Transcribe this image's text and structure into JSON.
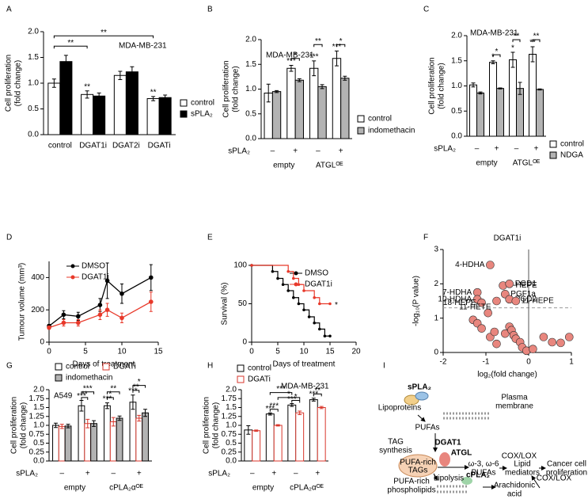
{
  "chart_data": [
    {
      "panel": "A",
      "type": "bar",
      "ylabel": [
        "Cell proliferation",
        "(fold change)"
      ],
      "note": "MDA-MB-231",
      "categories": [
        "control",
        "DGAT1i",
        "DGAT2i",
        "DGATi"
      ],
      "series": [
        {
          "name": "control",
          "color": "#ffffff",
          "edgecolor": "#000000",
          "values": [
            1.0,
            0.78,
            1.15,
            0.7
          ],
          "errors": [
            0.08,
            0.07,
            0.08,
            0.04
          ],
          "stars": [
            null,
            "**",
            null,
            "**"
          ]
        },
        {
          "name": "sPLA₂",
          "color": "#000000",
          "edgecolor": "#000000",
          "values": [
            1.42,
            0.75,
            1.22,
            0.72
          ],
          "errors": [
            0.12,
            0.06,
            0.1,
            0.05
          ]
        }
      ],
      "brackets": [
        "**",
        "**"
      ],
      "ylim": [
        0,
        2
      ],
      "yticks": [
        {
          "value": 0,
          "label": "0.0"
        },
        0.5,
        {
          "value": 1,
          "label": "1.0"
        },
        1.5,
        {
          "value": 2,
          "label": "2.0"
        }
      ]
    },
    {
      "panel": "B",
      "type": "bar",
      "ylabel": [
        "Cell proliferation",
        "(fold change)"
      ],
      "note": "MDA-MB-231",
      "categories": [
        "–",
        "+",
        "–",
        "+"
      ],
      "groups": [
        "empty",
        "ATGLᴼᴱ"
      ],
      "row_label": "sPLA₂",
      "series": [
        {
          "name": "control",
          "color": "#ffffff",
          "edgecolor": "#000000",
          "values": [
            0.92,
            1.42,
            1.42,
            1.62
          ],
          "errors": [
            0.18,
            0.06,
            0.15,
            0.15
          ],
          "stars": [
            null,
            "***",
            "***",
            "***"
          ]
        },
        {
          "name": "indomethacin",
          "color": "#b3b3b3",
          "edgecolor": "#000000",
          "values": [
            0.95,
            1.18,
            1.05,
            1.22
          ],
          "errors": [
            0.02,
            0.03,
            0.04,
            0.04
          ]
        }
      ],
      "brackets": [
        "*",
        "**",
        "*"
      ],
      "ylim": [
        0,
        2
      ],
      "yticks": [
        {
          "value": 0,
          "label": "0.0"
        },
        0.5,
        {
          "value": 1,
          "label": "1.0"
        },
        1.5,
        {
          "value": 2,
          "label": "2.0"
        }
      ]
    },
    {
      "panel": "C",
      "type": "bar",
      "ylabel": [
        "Cell proliferation",
        "(fold change)"
      ],
      "note": "MDA-MB-231",
      "categories": [
        "–",
        "+",
        "–",
        "+"
      ],
      "groups": [
        "empty",
        "ATGLᴼᴱ"
      ],
      "row_label": "sPLA₂",
      "series": [
        {
          "name": "control",
          "color": "#ffffff",
          "edgecolor": "#000000",
          "values": [
            1.02,
            1.47,
            1.52,
            1.63
          ],
          "errors": [
            0.04,
            0.03,
            0.15,
            0.15
          ],
          "stars": [
            null,
            "*",
            "*",
            "**"
          ]
        },
        {
          "name": "NDGA",
          "color": "#b3b3b3",
          "edgecolor": "#000000",
          "values": [
            0.86,
            0.95,
            0.95,
            0.93
          ],
          "errors": [
            0.02,
            0.01,
            0.12,
            0.01
          ]
        }
      ],
      "brackets": [
        "*",
        "**",
        "**"
      ],
      "ylim": [
        0,
        2
      ],
      "yticks": [
        {
          "value": 0,
          "label": "0.0"
        },
        0.5,
        {
          "value": 1,
          "label": "1.0"
        },
        1.5,
        {
          "value": 2,
          "label": "2.0"
        }
      ]
    },
    {
      "panel": "D",
      "type": "line",
      "ylabel": "Tumour volume (mm³)",
      "xlabel": "Days of treatment",
      "x": [
        0,
        2,
        4,
        7,
        8,
        10,
        14
      ],
      "series": [
        {
          "name": "DMSO",
          "color": "#000000",
          "values": [
            100,
            170,
            160,
            230,
            380,
            300,
            400
          ],
          "errors": [
            10,
            25,
            25,
            40,
            110,
            60,
            80
          ]
        },
        {
          "name": "DGAT1i",
          "color": "#e8392a",
          "values": [
            90,
            120,
            120,
            170,
            200,
            150,
            250
          ],
          "errors": [
            10,
            20,
            20,
            30,
            40,
            30,
            60
          ]
        }
      ],
      "xlim": [
        0,
        15
      ],
      "xticks": [
        0,
        5,
        10,
        15
      ],
      "ylim": [
        0,
        500
      ],
      "yticks": [
        0,
        200,
        400
      ]
    },
    {
      "panel": "E",
      "type": "step",
      "ylabel": "Survival (%)",
      "xlabel": "Days of treatment",
      "note": "*",
      "series": [
        {
          "name": "DMSO",
          "color": "#000000",
          "x": [
            0,
            4,
            5,
            6,
            7,
            8,
            9,
            10,
            11,
            12,
            13,
            14,
            15
          ],
          "values": [
            100,
            92,
            83,
            75,
            67,
            58,
            50,
            42,
            33,
            25,
            17,
            8,
            8
          ]
        },
        {
          "name": "DGAT1i",
          "color": "#e8392a",
          "x": [
            0,
            7,
            8,
            9,
            10,
            12,
            13,
            15
          ],
          "values": [
            100,
            92,
            83,
            75,
            67,
            58,
            50,
            50
          ]
        }
      ],
      "xlim": [
        0,
        20
      ],
      "xticks": [
        0,
        5,
        10,
        15,
        20
      ],
      "ylim": [
        0,
        100
      ],
      "yticks": [
        0,
        50,
        100
      ]
    },
    {
      "panel": "F",
      "type": "scatter",
      "title": "DGAT1i",
      "ylabel": "-log₁₀(P value)",
      "xlabel": "log₂(fold change)",
      "color": "#e8867e",
      "x": [
        -0.9,
        -0.6,
        -0.45,
        -1.2,
        -0.55,
        -1.2,
        -0.45,
        -1.1,
        -0.3,
        -0.75,
        -1.3,
        -1.2,
        -1.1,
        -0.95,
        -0.9,
        -0.8,
        -0.75,
        -0.55,
        -0.45,
        -0.4,
        -0.35,
        -0.3,
        -0.2,
        -0.15,
        -0.05,
        0.1,
        0.35,
        0.55,
        0.75,
        0.95
      ],
      "values": [
        2.55,
        1.95,
        2.0,
        1.75,
        1.7,
        1.55,
        1.55,
        1.45,
        1.5,
        1.5,
        0.95,
        0.85,
        0.7,
        1.15,
        0.45,
        0.6,
        0.25,
        0.55,
        0.75,
        0.65,
        0.5,
        0.4,
        0.3,
        0.15,
        0.05,
        0.1,
        0.45,
        0.3,
        0.28,
        0.45
      ],
      "labels": [
        "4-HDHA",
        "5-HEPE",
        "PGD1",
        "7-HDHA",
        "PGF1a",
        "10-HDHA",
        "PGD2",
        "18-HEPE",
        "11-HEPE",
        "11-HETE",
        null,
        null,
        null,
        null,
        null,
        null,
        null,
        null,
        null,
        null,
        null,
        null,
        null,
        null,
        null,
        null,
        null,
        null,
        null,
        null
      ],
      "hline": 1.3,
      "vline": 0,
      "xlim": [
        -2,
        1
      ],
      "xticks": [
        -2,
        -1,
        0,
        1
      ],
      "ylim": [
        0,
        3
      ],
      "yticks": [
        0,
        1,
        2,
        3
      ]
    },
    {
      "panel": "G",
      "type": "bar",
      "ylabel": [
        "Cell proliferation",
        "(fold change)"
      ],
      "note": "A549",
      "categories": [
        "–",
        "+",
        "–",
        "+"
      ],
      "groups": [
        "empty",
        "cPLA₂αᴼᴱ"
      ],
      "row_label": "sPLA₂",
      "series": [
        {
          "name": "control",
          "color": "#ffffff",
          "edgecolor": "#000000",
          "values": [
            1.0,
            1.55,
            1.55,
            1.65
          ],
          "errors": [
            0.06,
            0.15,
            0.08,
            0.2
          ],
          "stars": [
            null,
            "***",
            "***",
            "***"
          ]
        },
        {
          "name": "DGATi",
          "color": "#ffffff",
          "edgecolor": "#d9362b",
          "values": [
            0.97,
            1.05,
            1.1,
            1.2
          ],
          "errors": [
            0.06,
            0.12,
            0.12,
            0.08
          ]
        },
        {
          "name": "indomethacin",
          "color": "#b3b3b3",
          "edgecolor": "#000000",
          "values": [
            0.98,
            1.05,
            1.2,
            1.35
          ],
          "errors": [
            0.05,
            0.08,
            0.06,
            0.1
          ]
        }
      ],
      "brackets": [
        "**",
        "***",
        "*",
        "**",
        "**",
        "*"
      ],
      "ylim": [
        0,
        2
      ],
      "yticks": [
        {
          "value": 0,
          "label": "0.0"
        },
        0.25,
        0.5,
        0.75,
        {
          "value": 1,
          "label": "1.0"
        },
        1.25,
        1.5,
        1.75,
        {
          "value": 2,
          "label": "2.0"
        }
      ]
    },
    {
      "panel": "H",
      "type": "bar",
      "ylabel": [
        "Cell proliferation",
        "(fold change)"
      ],
      "note": "MDA-MB-231",
      "categories": [
        "–",
        "+",
        "–",
        "+"
      ],
      "groups": [
        "empty",
        "cPLA₂αᴼᴱ"
      ],
      "row_label": "sPLA₂",
      "series": [
        {
          "name": "control",
          "color": "#ffffff",
          "edgecolor": "#000000",
          "values": [
            0.87,
            1.32,
            1.57,
            1.72
          ],
          "errors": [
            0.12,
            0.03,
            0.04,
            0.04
          ],
          "stars": [
            null,
            "***",
            "***",
            "***"
          ]
        },
        {
          "name": "DGATi",
          "color": "#ffffff",
          "edgecolor": "#d9362b",
          "values": [
            0.85,
            1.0,
            1.35,
            1.5
          ],
          "errors": [
            0.02,
            0.02,
            0.05,
            0.03
          ]
        }
      ],
      "brackets": [
        "***",
        "***",
        "*",
        "*",
        "**"
      ],
      "ylim": [
        0,
        2
      ],
      "yticks": [
        {
          "value": 0,
          "label": "0.0"
        },
        0.25,
        0.5,
        0.75,
        {
          "value": 1,
          "label": "1.0"
        },
        1.25,
        1.5,
        1.75,
        {
          "value": 2,
          "label": "2.0"
        }
      ]
    }
  ],
  "diagram": {
    "panel": "I",
    "labels": [
      "sPLA₂",
      "Lipoproteins",
      "Plasma",
      "membrane",
      "PUFAs",
      "TAG",
      "synthesis",
      "DGAT1",
      "PUFA-rich",
      "TAGs",
      "ATGL",
      "Lipolysis",
      "ω-3, ω-6",
      "PUFAs",
      "COX/LOX",
      "Lipid",
      "mediators",
      "Cancer cell",
      "proliferation",
      "PUFA-rich",
      "phospholipids",
      "cPLA₂",
      "Arachidonic",
      "acid",
      "COX/LOX"
    ]
  }
}
